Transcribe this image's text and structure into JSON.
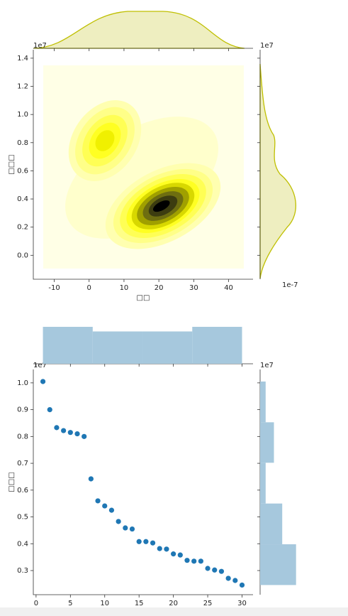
{
  "chart_data": [
    {
      "type": "kde",
      "xlabel": "□□",
      "ylabel": "□□□",
      "y_offset_label": "1e7",
      "right_offset_label": "1e7",
      "right_scale_label": "1e-7",
      "xlim": [
        -16,
        47
      ],
      "ylim": [
        -0.17,
        1.46
      ],
      "xticks": [
        -10,
        0,
        10,
        20,
        30,
        40
      ],
      "yticks": [
        {
          "value": 0,
          "label": "0.0"
        },
        0.2,
        0.4,
        0.6,
        0.8,
        {
          "value": 1,
          "label": "1.0"
        },
        1.2,
        1.4
      ],
      "color": "#bfbf00"
    },
    {
      "type": "scatter",
      "ylabel": "□□□",
      "y_offset_label": "1e7",
      "right_offset_label": "1e7",
      "x": [
        1,
        2,
        3,
        4,
        5,
        6,
        7,
        8,
        9,
        10,
        11,
        12,
        13,
        14,
        15,
        16,
        17,
        18,
        19,
        20,
        21,
        22,
        23,
        24,
        25,
        26,
        27,
        28,
        29,
        30
      ],
      "values": [
        1.005,
        0.9,
        0.833,
        0.822,
        0.815,
        0.81,
        0.8,
        0.642,
        0.56,
        0.541,
        0.525,
        0.483,
        0.459,
        0.455,
        0.408,
        0.408,
        0.403,
        0.382,
        0.38,
        0.362,
        0.358,
        0.338,
        0.335,
        0.335,
        0.308,
        0.302,
        0.297,
        0.271,
        0.263,
        0.246
      ],
      "color": "#1f77b4",
      "hist_color": "#a6c8dd",
      "xlim": [
        -0.4,
        31.6
      ],
      "ylim": [
        0.21,
        1.05
      ],
      "xticks": [
        0,
        5,
        10,
        15,
        20,
        25,
        30
      ],
      "yticks": [
        0.3,
        0.4,
        0.5,
        0.6,
        0.7,
        0.8,
        0.9,
        {
          "value": 1,
          "label": "1.0"
        }
      ],
      "x_hist": {
        "bins": [
          1,
          8.25,
          15.5,
          22.75,
          30
        ],
        "counts": [
          8,
          7,
          7,
          8
        ]
      },
      "y_hist": {
        "bins": [
          0.246,
          0.398,
          0.55,
          0.702,
          0.853,
          1.005
        ],
        "counts": [
          13,
          8,
          2,
          5,
          2
        ]
      }
    }
  ]
}
